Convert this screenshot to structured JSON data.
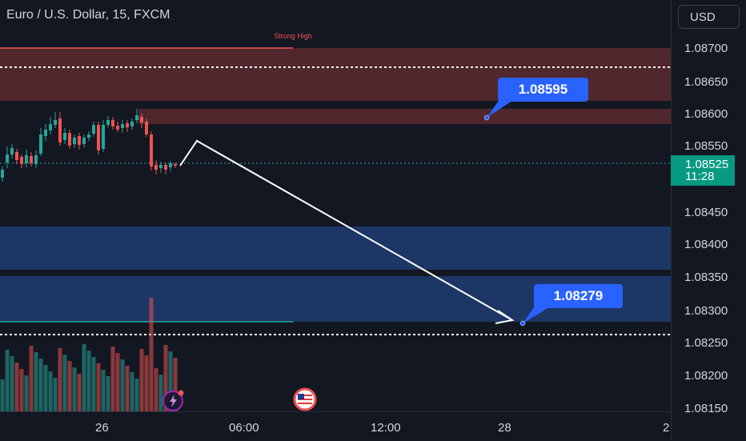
{
  "header": {
    "symbol_title": "Euro / U.S. Dollar, 15, FXCM",
    "currency_label": "USD"
  },
  "zones": {
    "strong_high_label": "Strong High"
  },
  "price_axis": {
    "labels": [
      "1.08700",
      "1.08650",
      "1.08600",
      "1.08550",
      "1.08450",
      "1.08400",
      "1.08350",
      "1.08300",
      "1.08250",
      "1.08200",
      "1.08150"
    ],
    "current_price": "1.08525",
    "countdown": "11:28"
  },
  "time_axis": {
    "labels": [
      "26",
      "06:00",
      "12:00",
      "28",
      "2"
    ]
  },
  "callouts": {
    "upper_price": "1.08595",
    "lower_price": "1.08279"
  },
  "colors": {
    "bullish": "#26a69a",
    "bearish": "#ef5350",
    "supply_zone": "#5c2a2e",
    "demand_zone": "#1e3a6e",
    "callout": "#2962ff",
    "current_price_bg": "#089981"
  },
  "icons": {
    "alert": "lightning-icon",
    "event": "us-flag-icon"
  }
}
